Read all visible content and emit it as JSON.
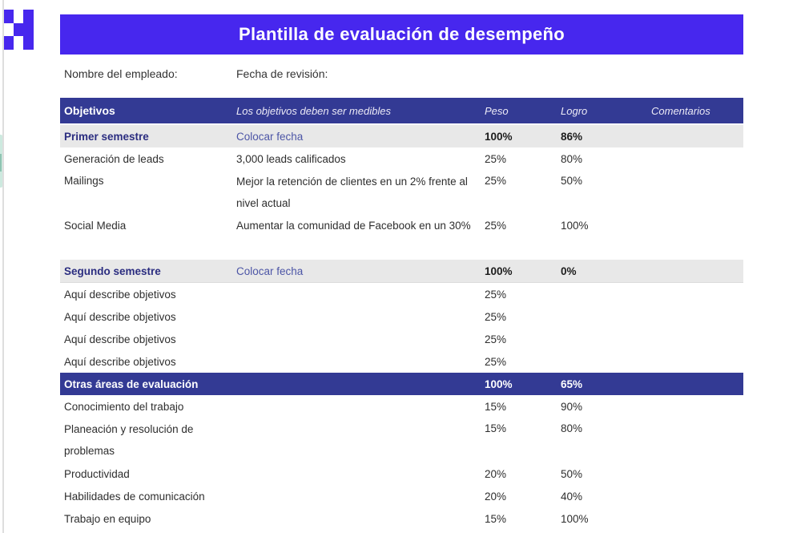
{
  "header": {
    "title": "Plantilla de evaluación de desempeño"
  },
  "meta": {
    "employee_label": "Nombre del empleado:",
    "review_date_label": "Fecha de revisión:"
  },
  "table": {
    "columns": {
      "objetivos": "Objetivos",
      "medibles": "Los objetivos deben ser medibles",
      "peso": "Peso",
      "logro": "Logro",
      "comentarios": "Comentarios"
    },
    "rows": [
      {
        "label": "Primer semestre",
        "desc": "Colocar fecha",
        "peso": "100%",
        "logro": "86%"
      },
      {
        "label": "Generación de leads",
        "desc": "3,000 leads calificados",
        "peso": "25%",
        "logro": "80%"
      },
      {
        "label": "Mailings",
        "desc": "Mejor la retención de clientes en un 2%  frente al nivel actual",
        "peso": "25%",
        "logro": "50%"
      },
      {
        "label": "Social Media",
        "desc": "Aumentar la comunidad de Facebook en un 30%",
        "peso": "25%",
        "logro": "100%"
      },
      {
        "label": "Segundo semestre",
        "desc": "Colocar fecha",
        "peso": "100%",
        "logro": "0%"
      },
      {
        "label": "Aquí describe objetivos",
        "desc": "",
        "peso": "25%",
        "logro": ""
      },
      {
        "label": "Aquí describe objetivos",
        "desc": "",
        "peso": "25%",
        "logro": ""
      },
      {
        "label": "Aquí describe objetivos",
        "desc": "",
        "peso": "25%",
        "logro": ""
      },
      {
        "label": "Aquí describe objetivos",
        "desc": "",
        "peso": "25%",
        "logro": ""
      },
      {
        "label": "Otras áreas de evaluación",
        "desc": "",
        "peso": "100%",
        "logro": "65%"
      },
      {
        "label": "Conocimiento del trabajo",
        "desc": "",
        "peso": "15%",
        "logro": "90%"
      },
      {
        "label": "Planeación y resolución de problemas",
        "desc": "",
        "peso": "15%",
        "logro": "80%"
      },
      {
        "label": "Productividad",
        "desc": "",
        "peso": "20%",
        "logro": "50%"
      },
      {
        "label": "Habilidades de comunicación",
        "desc": "",
        "peso": "20%",
        "logro": "40%"
      },
      {
        "label": "Trabajo en equipo",
        "desc": "",
        "peso": "15%",
        "logro": "100%"
      }
    ]
  },
  "colors": {
    "accent_purple": "#4727ee",
    "header_navy": "#333a94",
    "section_gray": "#e8e8e8",
    "section_title_navy": "#2b2d80",
    "placeholder_blue": "#4c55a6"
  },
  "logo": {
    "name": "pixel-h-logo",
    "color": "#4727ee"
  }
}
